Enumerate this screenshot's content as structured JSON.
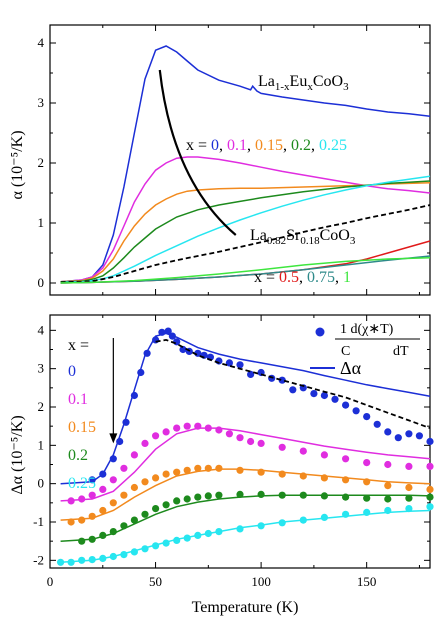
{
  "colors": {
    "x0": "#1c2fd6",
    "x01": "#e02de0",
    "x015": "#f28a1e",
    "x02": "#1d8a1d",
    "x025": "#27e6f0",
    "x05": "#e01a1a",
    "x075": "#2e8a8a",
    "x1": "#3ee63e",
    "lsco": "#000000"
  },
  "chart_data": [
    {
      "type": "line",
      "panel": "top",
      "xlim": [
        0,
        180
      ],
      "ylim": [
        -0.2,
        4.3
      ],
      "xticks": [
        0,
        50,
        100,
        150
      ],
      "yticks": [
        0,
        1,
        2,
        3,
        4
      ],
      "ylabel": "α (10⁻⁵/K)",
      "annotations": {
        "formula": {
          "base1": "La",
          "sub1": "1-x",
          "base2": "Eu",
          "sub2": "x",
          "base3": "CoO",
          "sub3": "3"
        },
        "x_prefix": "x = ",
        "x_values_upper": [
          "0",
          "0.1",
          "0.15",
          "0.2",
          "0.25"
        ],
        "x_values_lower": [
          "0.5",
          "0.75",
          "1"
        ],
        "lsco": {
          "base1": "La",
          "sub1": "0.82",
          "base2": "Sr",
          "sub2": "0.18",
          "base3": "CoO",
          "sub3": "3"
        }
      },
      "series": [
        {
          "name": "x = 0",
          "color_key": "x0",
          "dash": false,
          "x": [
            5,
            15,
            20,
            25,
            30,
            35,
            40,
            45,
            50,
            55,
            60,
            65,
            70,
            80,
            90,
            95,
            96,
            98,
            100,
            110,
            120,
            130,
            140,
            150,
            160,
            170,
            180
          ],
          "y": [
            0.02,
            0.05,
            0.1,
            0.3,
            0.8,
            1.6,
            2.5,
            3.4,
            3.88,
            3.95,
            3.85,
            3.7,
            3.55,
            3.38,
            3.28,
            3.22,
            3.28,
            3.2,
            3.16,
            3.1,
            3.05,
            3.0,
            2.96,
            2.9,
            2.85,
            2.82,
            2.78
          ]
        },
        {
          "name": "x = 0.1",
          "color_key": "x01",
          "dash": false,
          "x": [
            5,
            15,
            20,
            25,
            30,
            35,
            40,
            45,
            50,
            55,
            60,
            65,
            70,
            80,
            90,
            100,
            110,
            120,
            130,
            140,
            150,
            160,
            170,
            180
          ],
          "y": [
            0.02,
            0.05,
            0.1,
            0.25,
            0.55,
            0.95,
            1.35,
            1.65,
            1.88,
            2.0,
            2.08,
            2.1,
            2.1,
            2.06,
            2.0,
            1.93,
            1.86,
            1.8,
            1.74,
            1.68,
            1.62,
            1.57,
            1.54,
            1.5
          ]
        },
        {
          "name": "x = 0.15",
          "color_key": "x015",
          "dash": false,
          "x": [
            5,
            15,
            20,
            25,
            30,
            35,
            40,
            45,
            50,
            55,
            60,
            65,
            70,
            80,
            90,
            100,
            110,
            120,
            130,
            140,
            150,
            160,
            170,
            180
          ],
          "y": [
            0.02,
            0.04,
            0.08,
            0.2,
            0.4,
            0.7,
            0.95,
            1.15,
            1.3,
            1.4,
            1.48,
            1.53,
            1.55,
            1.57,
            1.58,
            1.58,
            1.59,
            1.6,
            1.61,
            1.62,
            1.63,
            1.65,
            1.66,
            1.67
          ]
        },
        {
          "name": "x = 0.2",
          "color_key": "x02",
          "dash": false,
          "x": [
            5,
            15,
            20,
            25,
            30,
            35,
            40,
            45,
            50,
            60,
            70,
            80,
            90,
            100,
            110,
            120,
            130,
            140,
            150,
            160,
            170,
            180
          ],
          "y": [
            0.02,
            0.03,
            0.06,
            0.12,
            0.25,
            0.42,
            0.6,
            0.75,
            0.9,
            1.1,
            1.22,
            1.3,
            1.36,
            1.42,
            1.47,
            1.52,
            1.56,
            1.6,
            1.63,
            1.66,
            1.68,
            1.7
          ]
        },
        {
          "name": "x = 0.25",
          "color_key": "x025",
          "dash": false,
          "x": [
            5,
            15,
            20,
            25,
            30,
            35,
            40,
            45,
            50,
            60,
            70,
            80,
            90,
            100,
            110,
            120,
            130,
            140,
            150,
            160,
            170,
            180
          ],
          "y": [
            0.01,
            0.02,
            0.04,
            0.07,
            0.12,
            0.2,
            0.28,
            0.37,
            0.46,
            0.62,
            0.78,
            0.92,
            1.05,
            1.17,
            1.28,
            1.38,
            1.47,
            1.55,
            1.62,
            1.68,
            1.73,
            1.78
          ]
        },
        {
          "name": "La0.82Sr0.18CoO3",
          "color_key": "lsco",
          "dash": true,
          "x": [
            5,
            20,
            30,
            40,
            50,
            60,
            70,
            80,
            90,
            100,
            110,
            120,
            130,
            140,
            150,
            160,
            170,
            180
          ],
          "y": [
            0.01,
            0.03,
            0.1,
            0.2,
            0.3,
            0.38,
            0.45,
            0.52,
            0.6,
            0.68,
            0.76,
            0.85,
            0.93,
            1.0,
            1.08,
            1.15,
            1.22,
            1.3
          ]
        },
        {
          "name": "x = 0.5",
          "color_key": "x05",
          "dash": false,
          "x": [
            5,
            20,
            40,
            60,
            80,
            100,
            120,
            140,
            150,
            160,
            170,
            180
          ],
          "y": [
            0.0,
            0.01,
            0.03,
            0.06,
            0.1,
            0.15,
            0.22,
            0.32,
            0.4,
            0.5,
            0.6,
            0.7
          ]
        },
        {
          "name": "x = 0.75",
          "color_key": "x075",
          "dash": false,
          "x": [
            5,
            20,
            40,
            60,
            80,
            100,
            120,
            140,
            160,
            180
          ],
          "y": [
            0.0,
            0.01,
            0.03,
            0.06,
            0.1,
            0.15,
            0.22,
            0.3,
            0.38,
            0.45
          ]
        },
        {
          "name": "x = 1",
          "color_key": "x1",
          "dash": false,
          "x": [
            5,
            20,
            40,
            60,
            80,
            100,
            120,
            140,
            160,
            180
          ],
          "y": [
            0.0,
            0.01,
            0.04,
            0.09,
            0.15,
            0.22,
            0.3,
            0.36,
            0.4,
            0.42
          ]
        }
      ],
      "arrow": {
        "from": [
          52,
          3.55
        ],
        "via": [
          58,
          1.7
        ],
        "to": [
          88,
          0.8
        ]
      }
    },
    {
      "type": "scatter",
      "panel": "bottom",
      "xlim": [
        0,
        180
      ],
      "ylim": [
        -2.2,
        4.4
      ],
      "xticks": [
        0,
        50,
        100,
        150
      ],
      "xtick_labels": [
        "0",
        "50",
        "100",
        "150"
      ],
      "yticks": [
        -2,
        -1,
        0,
        1,
        2,
        3,
        4
      ],
      "xlabel": "Temperature (K)",
      "ylabel": "Δα (10⁻⁵/K)",
      "legend": {
        "x_header": "x =",
        "x_values": [
          "0",
          "0.1",
          "0.15",
          "0.2",
          "0.25"
        ],
        "points_label_num": "1  d(χ∗T)",
        "points_label_den_c": "C",
        "points_label_den_dt": "dT",
        "line_label": "Δα"
      },
      "series": [
        {
          "name": "x = 0",
          "color_key": "x0",
          "offset": 0,
          "lines_x": [
            5,
            20,
            25,
            30,
            35,
            40,
            45,
            50,
            55,
            60,
            70,
            80,
            90,
            100,
            110,
            120,
            130,
            140,
            150,
            160,
            170,
            180
          ],
          "lines_y": [
            0.0,
            0.05,
            0.25,
            0.75,
            1.55,
            2.45,
            3.35,
            3.85,
            3.92,
            3.82,
            3.55,
            3.38,
            3.25,
            3.15,
            3.05,
            2.95,
            2.82,
            2.7,
            2.58,
            2.48,
            2.38,
            2.28
          ],
          "points_x": [
            20,
            25,
            30,
            33,
            36,
            40,
            43,
            46,
            50,
            53,
            56,
            58,
            60,
            63,
            66,
            70,
            73,
            76,
            80,
            85,
            90,
            95,
            100,
            105,
            110,
            115,
            120,
            125,
            130,
            135,
            140,
            145,
            150,
            155,
            160,
            165,
            170,
            175,
            180
          ],
          "points_y": [
            0.1,
            0.25,
            0.65,
            1.1,
            1.6,
            2.3,
            2.9,
            3.4,
            3.75,
            3.95,
            3.98,
            3.85,
            3.7,
            3.5,
            3.45,
            3.4,
            3.35,
            3.3,
            3.2,
            3.15,
            3.1,
            2.85,
            2.9,
            2.75,
            2.7,
            2.45,
            2.5,
            2.35,
            2.3,
            2.2,
            2.05,
            1.9,
            1.75,
            1.55,
            1.35,
            1.2,
            1.3,
            1.25,
            1.1
          ]
        },
        {
          "name": "x = 0.1",
          "color_key": "x01",
          "offset": 0,
          "lines_x": [
            5,
            20,
            30,
            40,
            50,
            60,
            70,
            80,
            90,
            100,
            110,
            120,
            130,
            140,
            150,
            160,
            170,
            180
          ],
          "lines_y": [
            -0.45,
            -0.4,
            -0.2,
            0.3,
            0.9,
            1.3,
            1.45,
            1.45,
            1.38,
            1.28,
            1.18,
            1.08,
            0.98,
            0.9,
            0.82,
            0.75,
            0.7,
            0.65
          ],
          "points_x": [
            10,
            15,
            20,
            25,
            30,
            35,
            40,
            45,
            50,
            55,
            60,
            65,
            70,
            75,
            80,
            85,
            90,
            95,
            100,
            110,
            120,
            130,
            140,
            150,
            160,
            170,
            180
          ],
          "points_y": [
            -0.45,
            -0.4,
            -0.3,
            -0.15,
            0.1,
            0.4,
            0.75,
            1.05,
            1.25,
            1.35,
            1.45,
            1.5,
            1.5,
            1.45,
            1.4,
            1.3,
            1.2,
            1.1,
            1.05,
            0.95,
            0.85,
            0.75,
            0.65,
            0.55,
            0.5,
            0.45,
            0.45
          ]
        },
        {
          "name": "x = 0.15",
          "color_key": "x015",
          "offset": 0,
          "lines_x": [
            5,
            20,
            30,
            40,
            50,
            60,
            70,
            80,
            90,
            100,
            110,
            120,
            130,
            140,
            150,
            160,
            170,
            180
          ],
          "lines_y": [
            -0.95,
            -0.9,
            -0.7,
            -0.35,
            -0.05,
            0.2,
            0.32,
            0.38,
            0.38,
            0.35,
            0.3,
            0.25,
            0.2,
            0.15,
            0.1,
            0.05,
            0.02,
            0.0
          ],
          "points_x": [
            10,
            15,
            20,
            25,
            30,
            35,
            40,
            45,
            50,
            55,
            60,
            65,
            70,
            75,
            80,
            90,
            100,
            110,
            120,
            130,
            140,
            150,
            160,
            170,
            180
          ],
          "points_y": [
            -1.0,
            -0.95,
            -0.85,
            -0.7,
            -0.5,
            -0.3,
            -0.1,
            0.05,
            0.15,
            0.25,
            0.3,
            0.35,
            0.4,
            0.4,
            0.4,
            0.35,
            0.3,
            0.25,
            0.2,
            0.15,
            0.1,
            0.05,
            -0.05,
            -0.1,
            -0.15
          ]
        },
        {
          "name": "x = 0.2",
          "color_key": "x02",
          "offset": 0,
          "lines_x": [
            5,
            20,
            30,
            40,
            50,
            60,
            70,
            80,
            90,
            100,
            110,
            120,
            130,
            140,
            150,
            160,
            170,
            180
          ],
          "lines_y": [
            -1.5,
            -1.45,
            -1.3,
            -1.05,
            -0.8,
            -0.6,
            -0.48,
            -0.4,
            -0.35,
            -0.32,
            -0.3,
            -0.3,
            -0.3,
            -0.3,
            -0.3,
            -0.3,
            -0.3,
            -0.32
          ],
          "points_x": [
            15,
            20,
            25,
            30,
            35,
            40,
            45,
            50,
            55,
            60,
            65,
            70,
            75,
            80,
            90,
            100,
            110,
            120,
            130,
            140,
            150,
            160,
            170,
            180
          ],
          "points_y": [
            -1.5,
            -1.45,
            -1.35,
            -1.25,
            -1.1,
            -0.95,
            -0.8,
            -0.65,
            -0.55,
            -0.45,
            -0.4,
            -0.35,
            -0.32,
            -0.3,
            -0.28,
            -0.28,
            -0.3,
            -0.3,
            -0.32,
            -0.35,
            -0.38,
            -0.4,
            -0.38,
            -0.35
          ]
        },
        {
          "name": "x = 0.25",
          "color_key": "x025",
          "offset": 0,
          "lines_x": [
            5,
            20,
            30,
            40,
            50,
            60,
            70,
            80,
            90,
            100,
            110,
            120,
            130,
            140,
            150,
            160,
            170,
            180
          ],
          "lines_y": [
            -2.05,
            -2.0,
            -1.9,
            -1.75,
            -1.6,
            -1.45,
            -1.35,
            -1.25,
            -1.15,
            -1.08,
            -1.0,
            -0.95,
            -0.9,
            -0.85,
            -0.8,
            -0.75,
            -0.72,
            -0.7
          ],
          "points_x": [
            5,
            10,
            15,
            20,
            25,
            30,
            35,
            40,
            45,
            50,
            55,
            60,
            65,
            70,
            75,
            80,
            90,
            100,
            110,
            120,
            130,
            140,
            150,
            160,
            170,
            180
          ],
          "points_y": [
            -2.05,
            -2.05,
            -2.0,
            -1.98,
            -1.95,
            -1.9,
            -1.85,
            -1.78,
            -1.7,
            -1.62,
            -1.55,
            -1.48,
            -1.42,
            -1.35,
            -1.3,
            -1.25,
            -1.18,
            -1.1,
            -1.02,
            -0.95,
            -0.88,
            -0.8,
            -0.75,
            -0.7,
            -0.65,
            -0.6
          ]
        },
        {
          "name": "La0.82Sr0.18CoO3",
          "color_key": "lsco",
          "dash": true,
          "lines_x": [
            50,
            55,
            60,
            65,
            70,
            80,
            90,
            100,
            110,
            120,
            130,
            140,
            150,
            160,
            170,
            180
          ],
          "lines_y": [
            3.7,
            3.75,
            3.65,
            3.5,
            3.35,
            3.15,
            3.0,
            2.85,
            2.7,
            2.55,
            2.4,
            2.25,
            2.05,
            1.85,
            1.65,
            1.45
          ]
        }
      ],
      "arrow": {
        "from": [
          30,
          3.8
        ],
        "to": [
          30,
          1.05
        ]
      }
    }
  ]
}
